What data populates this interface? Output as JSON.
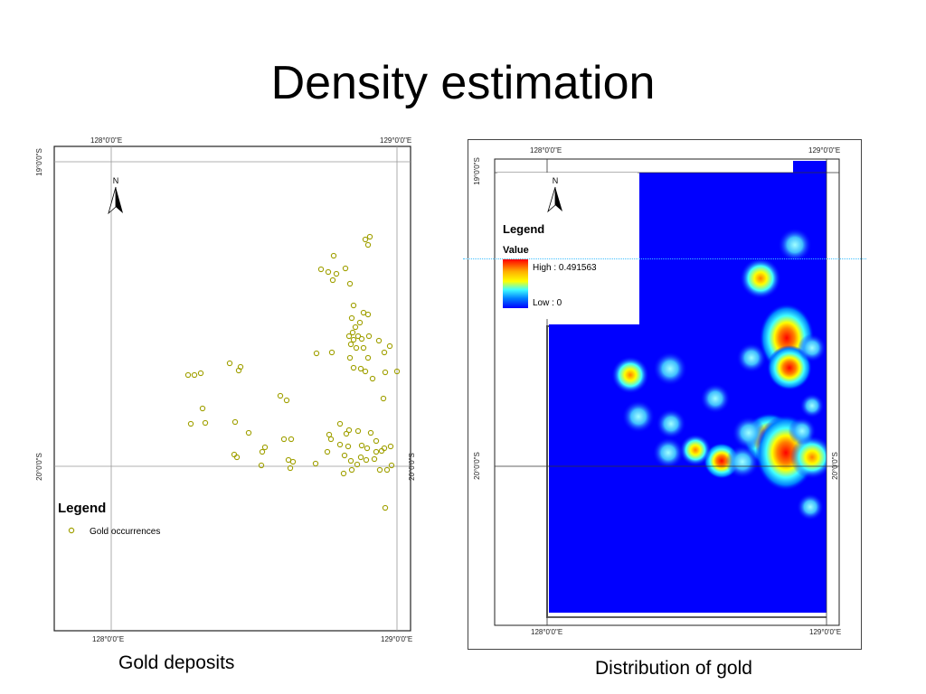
{
  "slide": {
    "title": "Density estimation"
  },
  "left_map": {
    "caption": "Gold deposits",
    "ticks": {
      "top_left": "128°0'0\"E",
      "top_right": "129°0'0\"E",
      "bottom_left": "128°0'0\"E",
      "bottom_right": "129°0'0\"E",
      "left_top": "19°0'0\"S",
      "left_bottom": "20°0'0\"S",
      "right_bottom": "20°0'0\"S"
    },
    "north_label": "N",
    "legend": {
      "title": "Legend",
      "item_label": "Gold occurrences"
    },
    "marker_color": "#a0a000",
    "points": [
      [
        404,
        265
      ],
      [
        409,
        262
      ],
      [
        407,
        271
      ],
      [
        369,
        283
      ],
      [
        355,
        298
      ],
      [
        363,
        301
      ],
      [
        372,
        303
      ],
      [
        382,
        297
      ],
      [
        368,
        310
      ],
      [
        387,
        314
      ],
      [
        391,
        338
      ],
      [
        389,
        352
      ],
      [
        402,
        346
      ],
      [
        407,
        348
      ],
      [
        398,
        357
      ],
      [
        393,
        362
      ],
      [
        390,
        368
      ],
      [
        386,
        372
      ],
      [
        391,
        376
      ],
      [
        396,
        372
      ],
      [
        400,
        375
      ],
      [
        388,
        381
      ],
      [
        394,
        385
      ],
      [
        408,
        372
      ],
      [
        402,
        385
      ],
      [
        419,
        377
      ],
      [
        431,
        383
      ],
      [
        425,
        390
      ],
      [
        350,
        391
      ],
      [
        367,
        390
      ],
      [
        387,
        396
      ],
      [
        407,
        396
      ],
      [
        391,
        407
      ],
      [
        399,
        408
      ],
      [
        404,
        411
      ],
      [
        412,
        419
      ],
      [
        426,
        412
      ],
      [
        439,
        411
      ],
      [
        254,
        402
      ],
      [
        266,
        406
      ],
      [
        264,
        410
      ],
      [
        208,
        415
      ],
      [
        215,
        415
      ],
      [
        222,
        413
      ],
      [
        310,
        438
      ],
      [
        317,
        443
      ],
      [
        424,
        441
      ],
      [
        224,
        452
      ],
      [
        211,
        469
      ],
      [
        227,
        468
      ],
      [
        260,
        467
      ],
      [
        275,
        479
      ],
      [
        376,
        469
      ],
      [
        383,
        480
      ],
      [
        386,
        476
      ],
      [
        396,
        477
      ],
      [
        410,
        479
      ],
      [
        364,
        481
      ],
      [
        366,
        486
      ],
      [
        314,
        486
      ],
      [
        322,
        486
      ],
      [
        376,
        492
      ],
      [
        385,
        494
      ],
      [
        400,
        493
      ],
      [
        406,
        496
      ],
      [
        416,
        488
      ],
      [
        432,
        494
      ],
      [
        422,
        499
      ],
      [
        293,
        495
      ],
      [
        290,
        500
      ],
      [
        259,
        503
      ],
      [
        262,
        506
      ],
      [
        319,
        509
      ],
      [
        324,
        511
      ],
      [
        349,
        513
      ],
      [
        362,
        500
      ],
      [
        381,
        504
      ],
      [
        388,
        510
      ],
      [
        399,
        506
      ],
      [
        405,
        509
      ],
      [
        414,
        508
      ],
      [
        416,
        500
      ],
      [
        425,
        496
      ],
      [
        395,
        514
      ],
      [
        389,
        520
      ],
      [
        380,
        524
      ],
      [
        321,
        518
      ],
      [
        289,
        515
      ],
      [
        420,
        520
      ],
      [
        428,
        520
      ],
      [
        433,
        515
      ],
      [
        426,
        562
      ]
    ]
  },
  "right_map": {
    "caption": "Distribution of gold",
    "ticks": {
      "top_left": "128°0'0\"E",
      "top_right": "129°0'0\"E",
      "bottom_left": "128°0'0\"E",
      "bottom_right": "129°0'0\"E",
      "left_top": "19°0'0\"S",
      "left_bottom": "20°0'0\"S",
      "right_bottom": "20°0'0\"S"
    },
    "north_label": "N",
    "legend": {
      "title": "Legend",
      "subtitle": "Value",
      "high_label": "High : 0.491563",
      "low_label": "Low : 0"
    },
    "colors": {
      "background": "#0000ff",
      "ramp": [
        "#ff0000",
        "#ff8000",
        "#ffff00",
        "#40ffff",
        "#0080ff",
        "#0000ff"
      ]
    },
    "hotspots": [
      [
        878,
        270,
        12,
        0.45
      ],
      [
        840,
        307,
        14,
        0.55
      ],
      [
        869,
        373,
        16,
        1.0
      ],
      [
        872,
        406,
        14,
        0.8
      ],
      [
        897,
        384,
        10,
        0.45
      ],
      [
        696,
        414,
        13,
        0.5
      ],
      [
        740,
        407,
        12,
        0.45
      ],
      [
        790,
        440,
        11,
        0.35
      ],
      [
        705,
        460,
        12,
        0.35
      ],
      [
        741,
        468,
        11,
        0.35
      ],
      [
        850,
        485,
        16,
        0.85
      ],
      [
        868,
        500,
        18,
        0.95
      ],
      [
        897,
        505,
        14,
        0.7
      ],
      [
        797,
        509,
        11,
        0.85
      ],
      [
        768,
        497,
        11,
        0.5
      ],
      [
        738,
        500,
        11,
        0.45
      ],
      [
        827,
        478,
        12,
        0.4
      ],
      [
        820,
        510,
        12,
        0.4
      ],
      [
        897,
        448,
        9,
        0.35
      ],
      [
        830,
        395,
        11,
        0.35
      ],
      [
        895,
        560,
        10,
        0.35
      ],
      [
        886,
        476,
        10,
        0.4
      ]
    ]
  }
}
